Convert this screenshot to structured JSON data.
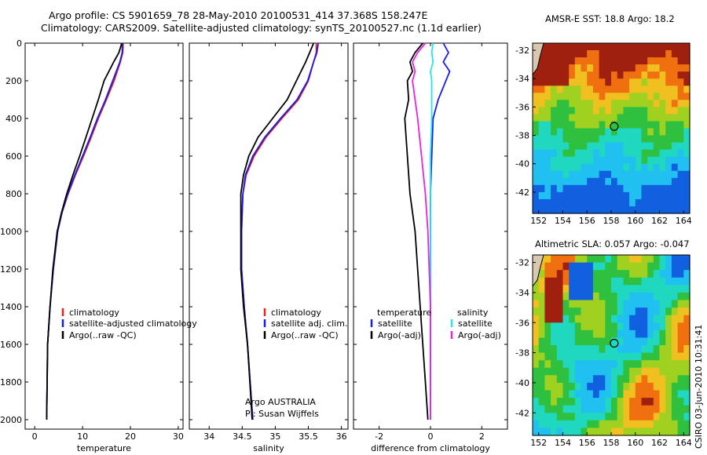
{
  "header": {
    "line1": "Argo profile: CS 5901659_78 28-May-2010 20100531_414 37.368S 158.247E",
    "line2": "Climatology: CARS2009. Satellite-adjusted climatology: synTS_20100527.nc (1.1d earlier)"
  },
  "colors": {
    "climatology": "#e8201a",
    "satellite": "#1a1ae8",
    "argo": "#000000",
    "satellite_diff": "#20e8e8",
    "argo_adj": "#e820e8"
  },
  "chart_data": [
    {
      "type": "line",
      "panel": "temperature",
      "xlabel": "temperature",
      "ylabel": "",
      "xlim": [
        -2,
        31
      ],
      "ylim": [
        2050,
        0
      ],
      "xticks": [
        "0",
        "10",
        "20",
        "30"
      ],
      "yticks": [
        "0",
        "200",
        "400",
        "600",
        "800",
        "1000",
        "1200",
        "1400",
        "1600",
        "1800",
        "2000"
      ],
      "legend": [
        "climatology",
        "satellite-adjusted climatology",
        "Argo(..raw -QC)"
      ],
      "legend_placement": "lower-right",
      "series": [
        {
          "name": "climatology",
          "x": [
            18.5,
            18.4,
            17.9,
            16.6,
            15.0,
            13.3,
            11.8,
            10.2,
            8.5,
            7.0,
            5.7,
            4.8,
            3.9,
            3.2,
            2.7,
            2.5
          ],
          "y": [
            0,
            50,
            100,
            200,
            300,
            400,
            500,
            600,
            700,
            800,
            900,
            1000,
            1200,
            1400,
            1600,
            2000
          ]
        },
        {
          "name": "satellite-adjusted climatology",
          "x": [
            18.3,
            18.3,
            17.8,
            16.3,
            14.8,
            13.1,
            11.6,
            10.0,
            8.4,
            6.9,
            5.7,
            4.8,
            3.9,
            3.2,
            2.7,
            2.5
          ],
          "y": [
            0,
            50,
            100,
            200,
            300,
            400,
            500,
            600,
            700,
            800,
            900,
            1000,
            1200,
            1400,
            1600,
            2000
          ]
        },
        {
          "name": "Argo(..raw -QC)",
          "x": [
            18.2,
            17.6,
            16.5,
            14.5,
            13.3,
            12.0,
            10.7,
            9.4,
            8.0,
            6.7,
            5.6,
            4.7,
            3.8,
            3.2,
            2.7,
            2.5
          ],
          "y": [
            0,
            50,
            100,
            200,
            300,
            400,
            500,
            600,
            700,
            800,
            900,
            1000,
            1200,
            1400,
            1600,
            2000
          ]
        }
      ]
    },
    {
      "type": "line",
      "panel": "salinity",
      "xlabel": "salinity",
      "xlim": [
        33.7,
        36.1
      ],
      "ylim": [
        2050,
        0
      ],
      "xticks": [
        "34",
        "34.5",
        "35",
        "35.5",
        "36"
      ],
      "legend": [
        "climatology",
        "satellite adj. clim.",
        "Argo(..raw -QC)"
      ],
      "legend_placement": "lower-right",
      "annotation": [
        "Argo AUSTRALIA",
        "PI: Susan Wijffels"
      ],
      "series": [
        {
          "name": "climatology",
          "x": [
            35.62,
            35.62,
            35.58,
            35.5,
            35.35,
            35.1,
            34.86,
            34.68,
            34.56,
            34.51,
            34.5,
            34.49,
            34.49,
            34.53,
            34.58,
            34.66
          ],
          "y": [
            0,
            50,
            100,
            200,
            300,
            400,
            500,
            600,
            700,
            800,
            900,
            1000,
            1200,
            1400,
            1600,
            2000
          ]
        },
        {
          "name": "satellite adj. clim.",
          "x": [
            35.65,
            35.63,
            35.58,
            35.49,
            35.33,
            35.08,
            34.84,
            34.66,
            34.55,
            34.51,
            34.5,
            34.49,
            34.49,
            34.53,
            34.58,
            34.66
          ],
          "y": [
            0,
            50,
            100,
            200,
            300,
            400,
            500,
            600,
            700,
            800,
            900,
            1000,
            1200,
            1400,
            1600,
            2000
          ]
        },
        {
          "name": "Argo(..raw -QC)",
          "x": [
            35.58,
            35.52,
            35.46,
            35.32,
            35.18,
            34.96,
            34.74,
            34.6,
            34.52,
            34.48,
            34.48,
            34.48,
            34.48,
            34.52,
            34.58,
            34.65
          ],
          "y": [
            0,
            50,
            100,
            200,
            300,
            400,
            500,
            600,
            700,
            800,
            900,
            1000,
            1200,
            1400,
            1600,
            2000
          ]
        }
      ]
    },
    {
      "type": "line",
      "panel": "difference",
      "xlabel": "difference from climatology",
      "xlim": [
        -3,
        3
      ],
      "ylim": [
        2050,
        0
      ],
      "xticks": [
        "-2",
        "0",
        "2"
      ],
      "legend_left_title": "temperature",
      "legend_right_title": "salinity",
      "legend": [
        "satellite",
        "Argo(-adj)",
        "satellite",
        "Argo(-adj)"
      ],
      "series": [
        {
          "name": "satellite",
          "x": [
            0.5,
            0.7,
            0.5,
            0.75,
            0.6,
            0.3,
            0.1,
            0.05,
            0.0,
            0.0,
            0.0,
            0.0,
            0.0
          ],
          "y": [
            0,
            50,
            100,
            150,
            200,
            300,
            400,
            600,
            800,
            1000,
            1400,
            1800,
            2000
          ]
        },
        {
          "name": "Argo(-adj)",
          "x": [
            -0.3,
            -0.6,
            -0.8,
            -0.7,
            -0.9,
            -0.85,
            -1.0,
            -0.9,
            -0.8,
            -0.6,
            -0.4,
            -0.2,
            -0.1
          ],
          "y": [
            0,
            50,
            100,
            150,
            200,
            300,
            400,
            600,
            800,
            1000,
            1400,
            1800,
            2000
          ]
        },
        {
          "name": "satellite",
          "x": [
            0.1,
            0.05,
            0.1,
            0.0,
            0.05,
            0.05,
            0.05,
            0.0,
            0.0,
            0.0,
            0.0,
            0.0,
            0.0
          ],
          "y": [
            0,
            50,
            100,
            150,
            200,
            300,
            400,
            600,
            800,
            1000,
            1400,
            1800,
            2000
          ]
        },
        {
          "name": "Argo(-adj)",
          "x": [
            -0.2,
            -0.5,
            -0.7,
            -0.6,
            -0.7,
            -0.6,
            -0.5,
            -0.35,
            -0.2,
            -0.1,
            0.0,
            0.0,
            0.0
          ],
          "y": [
            0,
            50,
            100,
            150,
            200,
            300,
            400,
            600,
            800,
            1000,
            1400,
            1800,
            2000
          ]
        }
      ]
    },
    {
      "type": "heatmap",
      "panel": "sst",
      "title": "AMSR-E SST: 18.8 Argo: 18.2",
      "xlim": [
        151.5,
        164.5
      ],
      "ylim": [
        -43.5,
        -31.5
      ],
      "xticks": [
        "152",
        "154",
        "156",
        "158",
        "160",
        "162",
        "164"
      ],
      "yticks": [
        "-32",
        "-34",
        "-36",
        "-38",
        "-40",
        "-42"
      ],
      "marker": {
        "lon": 158.25,
        "lat": -37.37
      }
    },
    {
      "type": "heatmap",
      "panel": "sla",
      "title": "Altimetric SLA: 0.057 Argo: -0.047",
      "xlim": [
        151.5,
        164.5
      ],
      "ylim": [
        -43.5,
        -31.5
      ],
      "xticks": [
        "152",
        "154",
        "156",
        "158",
        "160",
        "162",
        "164"
      ],
      "yticks": [
        "-32",
        "-34",
        "-36",
        "-38",
        "-40",
        "-42"
      ],
      "marker": {
        "lon": 158.25,
        "lat": -37.37
      }
    }
  ],
  "stamp": "CSIRO 03-Jun-2010 10:31:41"
}
